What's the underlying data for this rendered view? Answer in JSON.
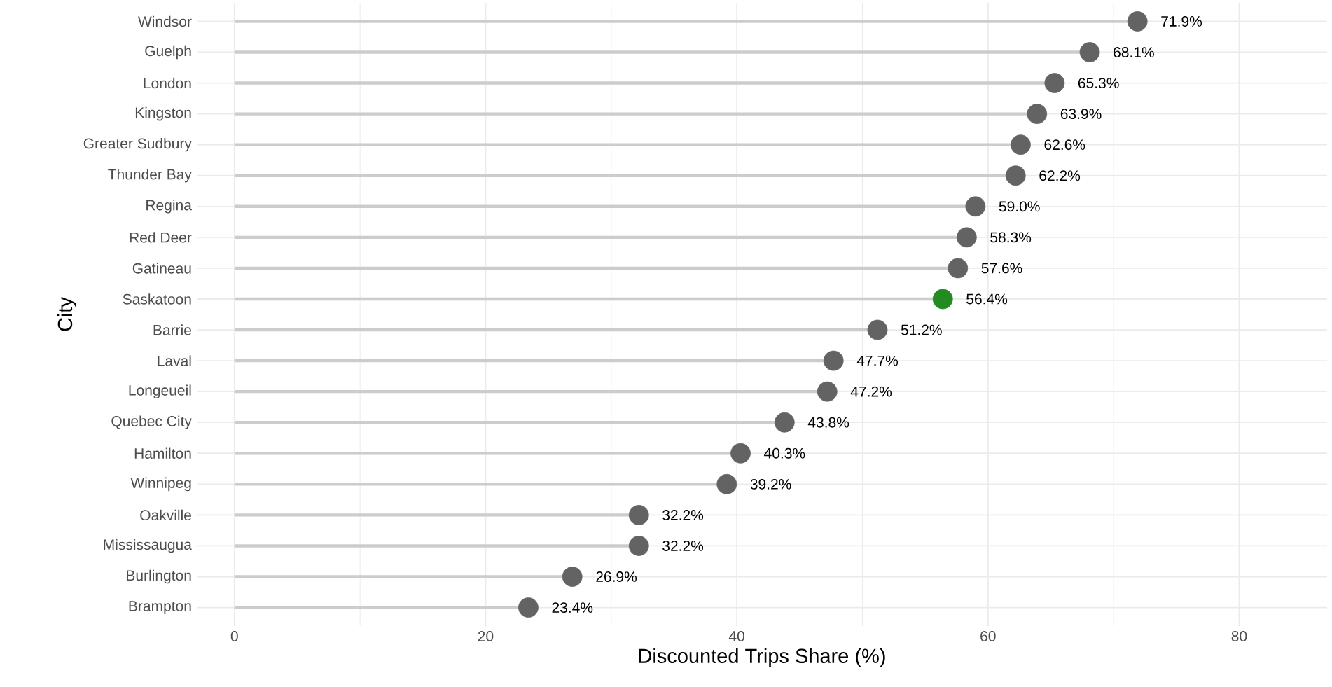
{
  "chart_data": {
    "type": "lollipop",
    "orientation": "horizontal",
    "xlabel": "Discounted Trips Share (%)",
    "ylabel": "City",
    "categories": [
      "Windsor",
      "Guelph",
      "London",
      "Kingston",
      "Greater Sudbury",
      "Thunder Bay",
      "Regina",
      "Red Deer",
      "Gatineau",
      "Saskatoon",
      "Barrie",
      "Laval",
      "Longeueil",
      "Quebec City",
      "Hamilton",
      "Winnipeg",
      "Oakville",
      "Mississaugua",
      "Burlington",
      "Brampton"
    ],
    "values": [
      71.9,
      68.1,
      65.3,
      63.9,
      62.6,
      62.2,
      59.0,
      58.3,
      57.6,
      56.4,
      51.2,
      47.7,
      47.2,
      43.8,
      40.3,
      39.2,
      32.2,
      32.2,
      26.9,
      23.4
    ],
    "value_labels": [
      "71.9%",
      "68.1%",
      "65.3%",
      "63.9%",
      "62.6%",
      "62.2%",
      "59.0%",
      "58.3%",
      "57.6%",
      "56.4%",
      "51.2%",
      "47.7%",
      "47.2%",
      "43.8%",
      "40.3%",
      "39.2%",
      "32.2%",
      "32.2%",
      "26.9%",
      "23.4%"
    ],
    "colors": [
      "#636363",
      "#636363",
      "#636363",
      "#636363",
      "#636363",
      "#636363",
      "#636363",
      "#636363",
      "#636363",
      "#228b22",
      "#636363",
      "#636363",
      "#636363",
      "#636363",
      "#636363",
      "#636363",
      "#636363",
      "#636363",
      "#636363",
      "#636363"
    ],
    "xlim": [
      -3,
      87
    ],
    "xticks": [
      0,
      20,
      40,
      60,
      80
    ],
    "grid": true,
    "marker": "circle"
  }
}
